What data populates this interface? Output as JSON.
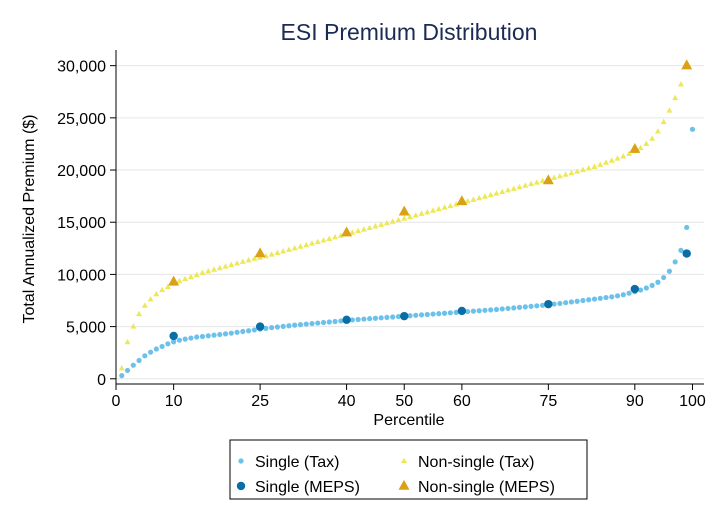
{
  "chart_data": {
    "type": "scatter",
    "title": "ESI Premium Distribution",
    "xlabel": "Percentile",
    "ylabel": "Total Annualized Premium ($)",
    "xlim": [
      0,
      102
    ],
    "ylim": [
      -500,
      31500
    ],
    "x_ticks": [
      0,
      10,
      25,
      40,
      50,
      60,
      75,
      90,
      100
    ],
    "y_ticks": [
      0,
      5000,
      10000,
      15000,
      20000,
      25000,
      30000
    ],
    "y_tick_labels": [
      "0",
      "5,000",
      "10,000",
      "15,000",
      "20,000",
      "25,000",
      "30,000"
    ],
    "grid": "horizontal",
    "legend_position": "bottom",
    "colors": {
      "single_tax": "#6cc1ea",
      "single_meps": "#0a6ea6",
      "nonsingle_tax": "#ede85a",
      "nonsingle_meps": "#dba015",
      "title": "#1c2b53"
    },
    "series": [
      {
        "name": "Single (Tax)",
        "marker": "small-circle",
        "x": [
          1,
          2,
          3,
          4,
          5,
          6,
          7,
          8,
          9,
          10,
          11,
          12,
          13,
          14,
          15,
          16,
          17,
          18,
          19,
          20,
          21,
          22,
          23,
          24,
          25,
          26,
          27,
          28,
          29,
          30,
          31,
          32,
          33,
          34,
          35,
          36,
          37,
          38,
          39,
          40,
          41,
          42,
          43,
          44,
          45,
          46,
          47,
          48,
          49,
          50,
          51,
          52,
          53,
          54,
          55,
          56,
          57,
          58,
          59,
          60,
          61,
          62,
          63,
          64,
          65,
          66,
          67,
          68,
          69,
          70,
          71,
          72,
          73,
          74,
          75,
          76,
          77,
          78,
          79,
          80,
          81,
          82,
          83,
          84,
          85,
          86,
          87,
          88,
          89,
          90,
          91,
          92,
          93,
          94,
          95,
          96,
          97,
          98,
          99,
          100
        ],
        "y": [
          300,
          800,
          1300,
          1750,
          2200,
          2550,
          2850,
          3100,
          3350,
          3550,
          3700,
          3800,
          3900,
          4000,
          4050,
          4120,
          4180,
          4240,
          4300,
          4370,
          4450,
          4530,
          4600,
          4680,
          4750,
          4830,
          4900,
          4960,
          5020,
          5080,
          5140,
          5190,
          5240,
          5290,
          5340,
          5390,
          5440,
          5490,
          5540,
          5600,
          5640,
          5680,
          5720,
          5760,
          5800,
          5840,
          5880,
          5920,
          5960,
          6000,
          6040,
          6080,
          6120,
          6160,
          6200,
          6240,
          6280,
          6320,
          6360,
          6400,
          6440,
          6480,
          6520,
          6560,
          6600,
          6640,
          6690,
          6740,
          6790,
          6840,
          6890,
          6940,
          6990,
          7040,
          7100,
          7160,
          7220,
          7290,
          7360,
          7430,
          7500,
          7570,
          7640,
          7710,
          7780,
          7850,
          7950,
          8050,
          8200,
          8350,
          8500,
          8700,
          8950,
          9250,
          9700,
          10300,
          11200,
          12300,
          14500,
          23900
        ]
      },
      {
        "name": "Single (MEPS)",
        "marker": "circle",
        "x": [
          10,
          25,
          40,
          50,
          60,
          75,
          90,
          99
        ],
        "y": [
          4100,
          5000,
          5650,
          6000,
          6500,
          7150,
          8600,
          12000
        ]
      },
      {
        "name": "Non-single (Tax)",
        "marker": "small-triangle",
        "x": [
          1,
          2,
          3,
          4,
          5,
          6,
          7,
          8,
          9,
          10,
          11,
          12,
          13,
          14,
          15,
          16,
          17,
          18,
          19,
          20,
          21,
          22,
          23,
          24,
          25,
          26,
          27,
          28,
          29,
          30,
          31,
          32,
          33,
          34,
          35,
          36,
          37,
          38,
          39,
          40,
          41,
          42,
          43,
          44,
          45,
          46,
          47,
          48,
          49,
          50,
          51,
          52,
          53,
          54,
          55,
          56,
          57,
          58,
          59,
          60,
          61,
          62,
          63,
          64,
          65,
          66,
          67,
          68,
          69,
          70,
          71,
          72,
          73,
          74,
          75,
          76,
          77,
          78,
          79,
          80,
          81,
          82,
          83,
          84,
          85,
          86,
          87,
          88,
          89,
          90,
          91,
          92,
          93,
          94,
          95,
          96,
          97,
          98,
          99
        ],
        "y": [
          1000,
          3500,
          5000,
          6200,
          7000,
          7600,
          8100,
          8500,
          8800,
          9100,
          9350,
          9550,
          9750,
          9950,
          10150,
          10300,
          10450,
          10600,
          10750,
          10900,
          11050,
          11200,
          11350,
          11500,
          11600,
          11750,
          11900,
          12050,
          12200,
          12350,
          12500,
          12650,
          12800,
          12950,
          13100,
          13250,
          13400,
          13550,
          13700,
          13850,
          14000,
          14150,
          14300,
          14450,
          14600,
          14750,
          14900,
          15050,
          15200,
          15350,
          15500,
          15650,
          15800,
          15950,
          16100,
          16250,
          16400,
          16550,
          16700,
          16850,
          17000,
          17150,
          17300,
          17450,
          17600,
          17750,
          17900,
          18050,
          18200,
          18350,
          18500,
          18650,
          18800,
          18950,
          19100,
          19250,
          19400,
          19550,
          19700,
          19850,
          20000,
          20150,
          20300,
          20500,
          20700,
          20900,
          21100,
          21300,
          21550,
          21800,
          22100,
          22500,
          23000,
          23700,
          24600,
          25700,
          26900,
          28200,
          30300
        ]
      },
      {
        "name": "Non-single (MEPS)",
        "marker": "triangle",
        "x": [
          10,
          25,
          40,
          50,
          60,
          75,
          90,
          99
        ],
        "y": [
          9300,
          12000,
          14000,
          16000,
          17000,
          19000,
          22000,
          30000
        ]
      }
    ]
  }
}
